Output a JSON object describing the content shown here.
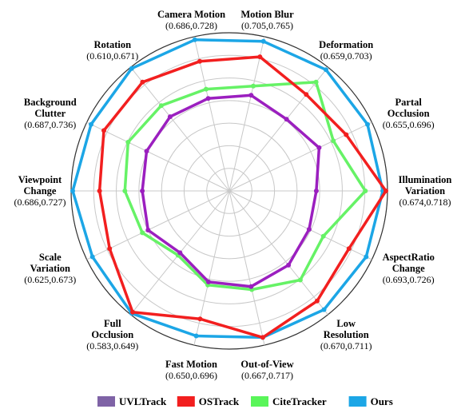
{
  "chart_data": {
    "type": "radar",
    "title": "",
    "axes": [
      {
        "name": [
          "Motion Blur"
        ],
        "range": "(0.705,0.765)"
      },
      {
        "name": [
          "Deformation"
        ],
        "range": "(0.659,0.703)"
      },
      {
        "name": [
          "Partal",
          "Occlusion"
        ],
        "range": "(0.655,0.696)"
      },
      {
        "name": [
          "Illumination",
          "Variation"
        ],
        "range": "(0.674,0.718)"
      },
      {
        "name": [
          "AspectRatio",
          "Change"
        ],
        "range": "(0.693,0.726)"
      },
      {
        "name": [
          "Low",
          "Resolution"
        ],
        "range": "(0.670,0.711)"
      },
      {
        "name": [
          "Out-of-View"
        ],
        "range": "(0.667,0.717)"
      },
      {
        "name": [
          "Fast Motion"
        ],
        "range": "(0.650,0.696)"
      },
      {
        "name": [
          "Full",
          "Occlusion"
        ],
        "range": "(0.583,0.649)"
      },
      {
        "name": [
          "Scale",
          "Variation"
        ],
        "range": "(0.625,0.673)"
      },
      {
        "name": [
          "Viewpoint",
          "Change"
        ],
        "range": "(0.686,0.727)"
      },
      {
        "name": [
          "Background",
          "Clutter"
        ],
        "range": "(0.687,0.736)"
      },
      {
        "name": [
          "Rotation"
        ],
        "range": "(0.610,0.671)"
      },
      {
        "name": [
          "Camera Motion"
        ],
        "range": "(0.686,0.728)"
      }
    ],
    "rlim": [
      0,
      1
    ],
    "rings": 7,
    "grid": true,
    "legend_position": "bottom",
    "series": [
      {
        "name": "UVLTrack",
        "color": "#9B1FBF",
        "legend_color": "#7F63A6",
        "values": [
          0.62,
          0.58,
          0.63,
          0.55,
          0.56,
          0.6,
          0.62,
          0.59,
          0.5,
          0.57,
          0.55,
          0.58,
          0.6,
          0.6
        ]
      },
      {
        "name": "OSTrack",
        "color": "#F21F1F",
        "legend_color": "#F21F1F",
        "values": [
          0.87,
          0.78,
          0.82,
          0.99,
          0.84,
          0.89,
          0.95,
          0.83,
          0.98,
          0.84,
          0.82,
          0.88,
          0.88,
          0.84
        ]
      },
      {
        "name": "CiteTracker",
        "color": "#66F266",
        "legend_color": "#59F559",
        "values": [
          0.68,
          0.88,
          0.73,
          0.86,
          0.66,
          0.72,
          0.64,
          0.61,
          0.52,
          0.61,
          0.66,
          0.71,
          0.69,
          0.66
        ]
      },
      {
        "name": "Ours",
        "color": "#1CA6E6",
        "legend_color": "#1CA6E6",
        "values": [
          0.97,
          0.98,
          0.97,
          0.97,
          0.96,
          0.96,
          0.95,
          0.94,
          0.99,
          0.96,
          0.99,
          0.97,
          0.99,
          0.98
        ]
      }
    ]
  }
}
